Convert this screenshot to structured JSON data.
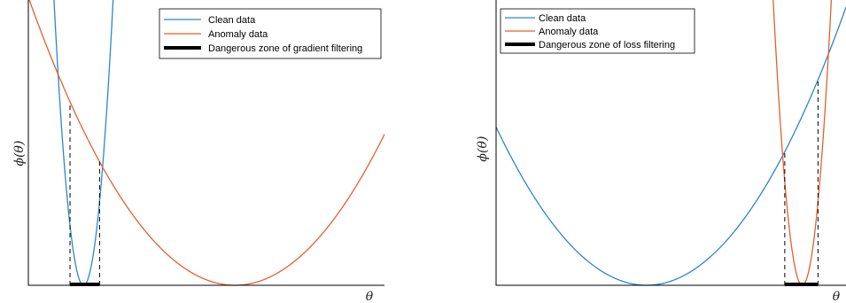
{
  "colors": {
    "clean": "#2f86c8",
    "anomaly": "#e0622e",
    "zone": "#000000"
  },
  "chart_data": [
    {
      "type": "line",
      "xlabel": "θ",
      "ylabel": "ϕ(θ)",
      "xlim": [
        0,
        10
      ],
      "ylim": [
        0,
        10
      ],
      "legend_position": "top-right",
      "series": [
        {
          "name": "Clean data",
          "color_key": "clean",
          "kind": "parabola",
          "vertex_x": 1.55,
          "vertex_y": 0,
          "curvature": 14.5
        },
        {
          "name": "Anomaly data",
          "color_key": "anomaly",
          "kind": "parabola",
          "vertex_x": 5.8,
          "vertex_y": 0,
          "curvature": 0.3
        }
      ],
      "zone": {
        "name": "Dangerous zone of gradient filtering",
        "x_range": [
          1.17,
          2.0
        ]
      }
    },
    {
      "type": "line",
      "xlabel": "θ",
      "ylabel": "ϕ(θ)",
      "xlim": [
        0,
        10
      ],
      "ylim": [
        0,
        10
      ],
      "legend_position": "top-left",
      "series": [
        {
          "name": "Clean data",
          "color_key": "clean",
          "kind": "parabola",
          "vertex_x": 4.3,
          "vertex_y": 0,
          "curvature": 0.3
        },
        {
          "name": "Anomaly data",
          "color_key": "anomaly",
          "kind": "parabola",
          "vertex_x": 8.75,
          "vertex_y": 0,
          "curvature": 14.5
        }
      ],
      "zone": {
        "name": "Dangerous zone of loss filtering",
        "x_range": [
          8.25,
          9.2
        ]
      }
    }
  ]
}
